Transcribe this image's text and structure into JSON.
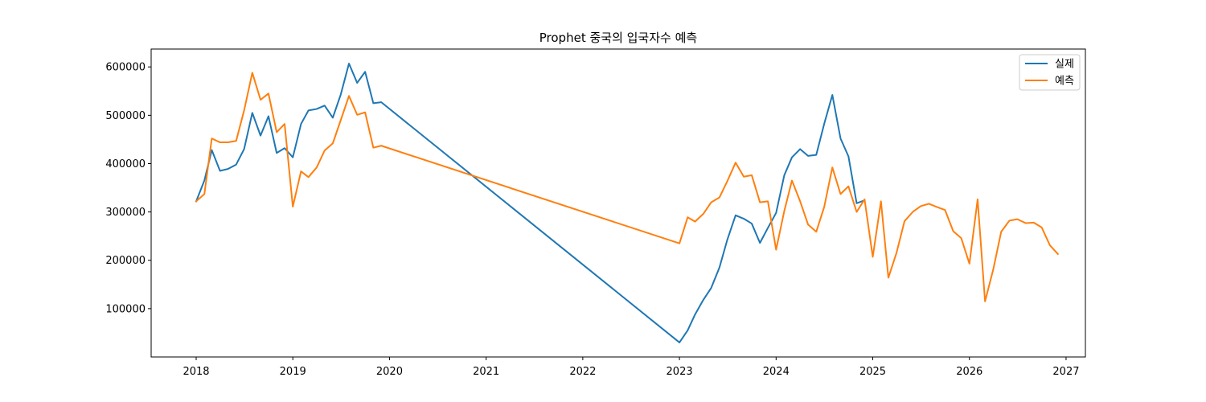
{
  "chart_data": {
    "type": "line",
    "title": "Prophet 중국의 입국자수 예측",
    "xlabel": "",
    "ylabel": "",
    "xlim": [
      "2017-07-15",
      "2027-03-15"
    ],
    "ylim": [
      0,
      637000
    ],
    "x_ticks": [
      "2018",
      "2019",
      "2020",
      "2021",
      "2022",
      "2023",
      "2024",
      "2025",
      "2026",
      "2027"
    ],
    "y_ticks": [
      100000,
      200000,
      300000,
      400000,
      500000,
      600000
    ],
    "y_tick_labels": [
      "100000",
      "200000",
      "300000",
      "400000",
      "500000",
      "600000"
    ],
    "grid": false,
    "legend_position": "top-right",
    "series": [
      {
        "name": "실제",
        "color": "#1f77b4",
        "x": [
          "2018-01",
          "2018-02",
          "2018-03",
          "2018-04",
          "2018-05",
          "2018-06",
          "2018-07",
          "2018-08",
          "2018-09",
          "2018-10",
          "2018-11",
          "2018-12",
          "2019-01",
          "2019-02",
          "2019-03",
          "2019-04",
          "2019-05",
          "2019-06",
          "2019-07",
          "2019-08",
          "2019-09",
          "2019-10",
          "2019-11",
          "2019-12",
          "2023-01",
          "2023-02",
          "2023-03",
          "2023-04",
          "2023-05",
          "2023-06",
          "2023-07",
          "2023-08",
          "2023-09",
          "2023-10",
          "2023-11",
          "2023-12",
          "2024-01",
          "2024-02",
          "2024-03",
          "2024-04",
          "2024-05",
          "2024-06",
          "2024-07",
          "2024-08",
          "2024-09",
          "2024-10",
          "2024-11",
          "2024-12"
        ],
        "y": [
          322000,
          365000,
          428000,
          385000,
          389000,
          398000,
          430000,
          505000,
          458000,
          498000,
          422000,
          432000,
          413000,
          482000,
          510000,
          513000,
          520000,
          495000,
          543000,
          607000,
          567000,
          590000,
          525000,
          527000,
          30000,
          55000,
          88000,
          118000,
          143000,
          185000,
          243000,
          293000,
          286000,
          276000,
          236000,
          267000,
          298000,
          376000,
          413000,
          430000,
          416000,
          418000,
          482000,
          542000,
          452000,
          415000,
          318000,
          324000
        ]
      },
      {
        "name": "예측",
        "color": "#ff7f0e",
        "x": [
          "2018-01",
          "2018-02",
          "2018-03",
          "2018-04",
          "2018-05",
          "2018-06",
          "2018-07",
          "2018-08",
          "2018-09",
          "2018-10",
          "2018-11",
          "2018-12",
          "2019-01",
          "2019-02",
          "2019-03",
          "2019-04",
          "2019-05",
          "2019-06",
          "2019-07",
          "2019-08",
          "2019-09",
          "2019-10",
          "2019-11",
          "2019-12",
          "2023-01",
          "2023-02",
          "2023-03",
          "2023-04",
          "2023-05",
          "2023-06",
          "2023-07",
          "2023-08",
          "2023-09",
          "2023-10",
          "2023-11",
          "2023-12",
          "2024-01",
          "2024-02",
          "2024-03",
          "2024-04",
          "2024-05",
          "2024-06",
          "2024-07",
          "2024-08",
          "2024-09",
          "2024-10",
          "2024-11",
          "2024-12",
          "2025-01",
          "2025-02",
          "2025-03",
          "2025-04",
          "2025-05",
          "2025-06",
          "2025-07",
          "2025-08",
          "2025-09",
          "2025-10",
          "2025-11",
          "2025-12",
          "2026-01",
          "2026-02",
          "2026-03",
          "2026-04",
          "2026-05",
          "2026-06",
          "2026-07",
          "2026-08",
          "2026-09",
          "2026-10",
          "2026-11",
          "2026-12"
        ],
        "y": [
          322000,
          337000,
          452000,
          444000,
          444000,
          447000,
          510000,
          588000,
          532000,
          545000,
          465000,
          482000,
          311000,
          384000,
          372000,
          392000,
          427000,
          442000,
          490000,
          540000,
          501000,
          506000,
          433000,
          437000,
          235000,
          289000,
          280000,
          296000,
          320000,
          330000,
          364000,
          402000,
          373000,
          376000,
          320000,
          322000,
          222000,
          302000,
          365000,
          322000,
          274000,
          259000,
          310000,
          392000,
          337000,
          353000,
          300000,
          326000,
          207000,
          322000,
          164000,
          216000,
          281000,
          300000,
          312000,
          317000,
          310000,
          304000,
          260000,
          246000,
          193000,
          326000,
          115000,
          181000,
          259000,
          282000,
          285000,
          277000,
          278000,
          268000,
          231000,
          213000
        ]
      }
    ]
  }
}
